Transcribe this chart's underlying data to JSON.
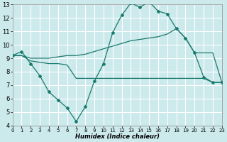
{
  "xlabel": "Humidex (Indice chaleur)",
  "bg_color": "#cce9ec",
  "grid_color": "#ffffff",
  "line_color": "#1a7a6e",
  "xlim": [
    0,
    23
  ],
  "ylim": [
    4,
    13
  ],
  "xticks": [
    0,
    1,
    2,
    3,
    4,
    5,
    6,
    7,
    8,
    9,
    10,
    11,
    12,
    13,
    14,
    15,
    16,
    17,
    18,
    19,
    20,
    21,
    22,
    23
  ],
  "yticks": [
    4,
    5,
    6,
    7,
    8,
    9,
    10,
    11,
    12,
    13
  ],
  "line1_x": [
    0,
    1,
    2,
    3,
    4,
    5,
    6,
    7,
    8,
    9,
    10,
    11,
    12,
    13,
    14,
    15,
    16,
    17,
    18,
    19,
    20,
    21,
    22,
    23
  ],
  "line1_y": [
    9.2,
    9.5,
    8.6,
    7.7,
    6.5,
    5.9,
    5.3,
    4.3,
    5.4,
    7.3,
    8.6,
    10.9,
    12.2,
    13.1,
    12.8,
    13.2,
    12.5,
    12.3,
    11.2,
    10.5,
    9.4,
    7.6,
    7.2,
    7.2
  ],
  "line2_x": [
    0,
    1,
    2,
    3,
    4,
    5,
    6,
    7,
    8,
    9,
    10,
    11,
    12,
    13,
    14,
    15,
    16,
    17,
    18,
    19,
    20,
    21,
    22,
    23
  ],
  "line2_y": [
    9.2,
    9.2,
    9.0,
    9.0,
    9.0,
    9.1,
    9.2,
    9.2,
    9.3,
    9.5,
    9.7,
    9.9,
    10.1,
    10.3,
    10.4,
    10.5,
    10.6,
    10.8,
    11.2,
    10.5,
    9.4,
    9.4,
    9.4,
    7.2
  ],
  "line3_x": [
    0,
    1,
    2,
    3,
    4,
    5,
    6,
    7,
    8,
    9,
    10,
    11,
    12,
    13,
    14,
    15,
    16,
    17,
    18,
    19,
    20,
    21,
    22,
    23
  ],
  "line3_y": [
    9.2,
    9.2,
    8.8,
    8.7,
    8.6,
    8.6,
    8.5,
    7.5,
    7.5,
    7.5,
    7.5,
    7.5,
    7.5,
    7.5,
    7.5,
    7.5,
    7.5,
    7.5,
    7.5,
    7.5,
    7.5,
    7.5,
    7.2,
    7.2
  ]
}
